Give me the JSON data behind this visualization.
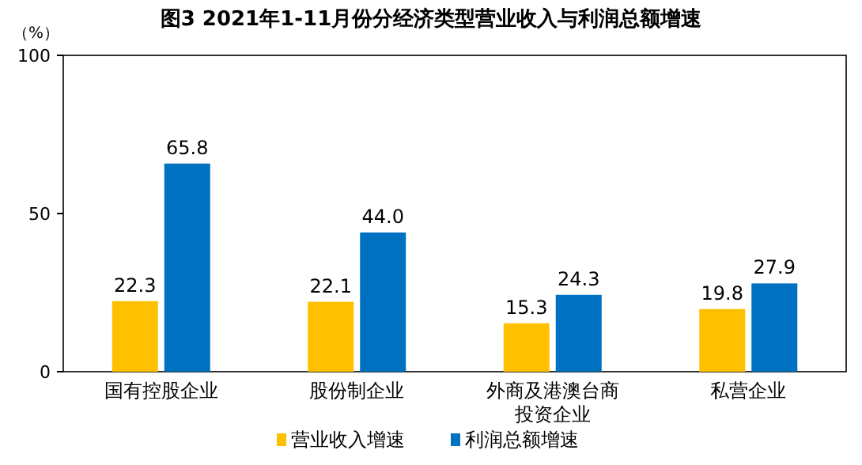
{
  "chart_data": {
    "type": "bar",
    "title": "图3  2021年1-11月份分经济类型营业收入与利润总额增速",
    "ylabel": "（%）",
    "categories": [
      "国有控股企业",
      "股份制企业",
      "外商及港澳台商投资企业",
      "私营企业"
    ],
    "series": [
      {
        "name": "营业收入增速",
        "color": "#ffc000",
        "values": [
          22.3,
          22.1,
          15.3,
          19.8
        ],
        "value_labels": [
          "22.3",
          "22.1",
          "15.3",
          "19.8"
        ]
      },
      {
        "name": "利润总额增速",
        "color": "#0070c0",
        "values": [
          65.8,
          44.0,
          24.3,
          27.9
        ],
        "value_labels": [
          "65.8",
          "44.0",
          "24.3",
          "27.9"
        ]
      }
    ],
    "ylim": [
      0,
      100
    ],
    "yticks": [
      0,
      50,
      100
    ],
    "legend": "bottom",
    "grid": false
  }
}
